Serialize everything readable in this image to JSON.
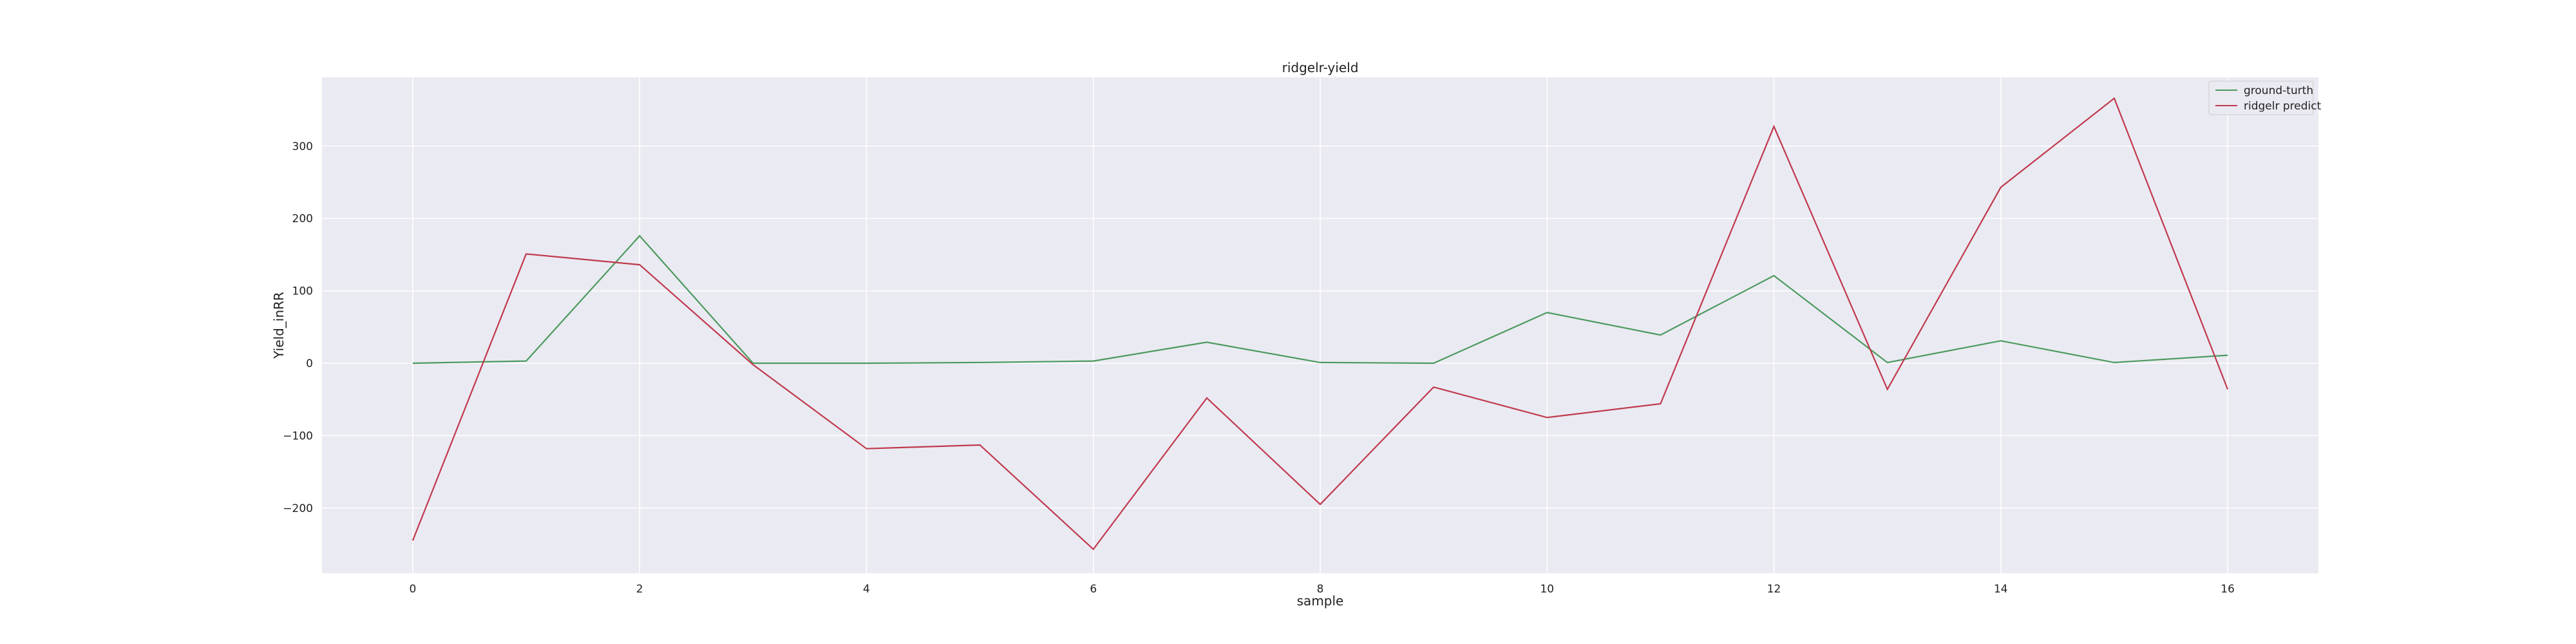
{
  "chart_data": {
    "type": "line",
    "title": "ridgelr-yield",
    "xlabel": "sample",
    "ylabel": "Yield_inRR",
    "x": [
      0,
      1,
      2,
      3,
      4,
      5,
      6,
      7,
      8,
      9,
      10,
      11,
      12,
      13,
      14,
      15,
      16
    ],
    "xlim": [
      -0.8,
      16.8
    ],
    "ylim": [
      -290,
      395
    ],
    "xticks": [
      0,
      2,
      4,
      6,
      8,
      10,
      12,
      14,
      16
    ],
    "yticks": [
      -200,
      -100,
      0,
      100,
      200,
      300
    ],
    "ytick_labels": [
      "−200",
      "−100",
      "0",
      "100",
      "200",
      "300"
    ],
    "grid": true,
    "legend": "top-right",
    "series": [
      {
        "name": "ground-turth",
        "color": "#4c9a5e",
        "values": [
          0,
          3,
          176,
          0,
          0,
          1,
          3,
          29,
          1,
          0,
          70,
          39,
          121,
          1,
          31,
          1,
          11
        ]
      },
      {
        "name": "ridgelr predict",
        "color": "#c0394d",
        "values": [
          -245,
          151,
          136,
          -2,
          -118,
          -113,
          -257,
          -48,
          -195,
          -33,
          -75,
          -56,
          327,
          -36,
          243,
          366,
          -36
        ]
      }
    ]
  }
}
